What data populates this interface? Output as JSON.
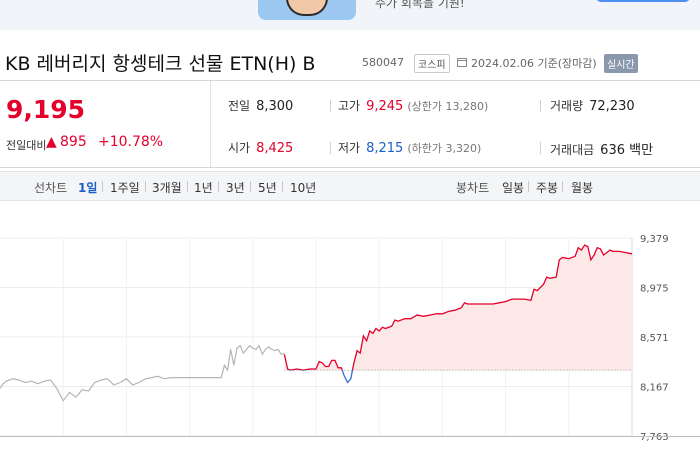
{
  "banner": {
    "text": "주가 회복을 기원!"
  },
  "stock": {
    "name": "KB 레버리지 항셍테크 선물 ETN(H) B",
    "code": "580047",
    "market": "코스피",
    "date": "2024.02.06 기준(장마감)",
    "realtime": "실시간"
  },
  "price": {
    "current": "9,195",
    "change_label": "전일대비",
    "change_arrow": "▲",
    "change_amount": "895",
    "change_pct": "+10.78%"
  },
  "stats": {
    "prev_label": "전일",
    "prev": "8,300",
    "high_label": "고가",
    "high": "9,245",
    "high_sub": "(상한가 13,280)",
    "volume_label": "거래량",
    "volume": "72,230",
    "open_label": "시가",
    "open": "8,425",
    "low_label": "저가",
    "low": "8,215",
    "low_sub": "(하한가 3,320)",
    "value_label": "거래대금",
    "value": "636 백만"
  },
  "tabs": {
    "line_label": "선차트",
    "line": [
      "1일",
      "1주일",
      "3개월",
      "1년",
      "3년",
      "5년",
      "10년"
    ],
    "candle_label": "봉차트",
    "candle": [
      "일봉",
      "주봉",
      "월봉"
    ]
  },
  "chart_data": {
    "type": "line",
    "y_ticks": [
      9379,
      8975,
      8571,
      8167,
      7763
    ],
    "y_tick_labels": [
      "9,379",
      "8,975",
      "8,571",
      "8,167",
      "7,763"
    ],
    "ylim": [
      7763,
      9379
    ],
    "xlim": [
      0,
      100
    ],
    "baseline": 8300,
    "grid": true,
    "colors": {
      "prev": "#b5b5b5",
      "up": "#e4002b",
      "down": "#2f6fd0",
      "fill": "#fde8e8"
    },
    "series": [
      {
        "values": [
          [
            0,
            8150
          ],
          [
            0.5,
            8190
          ],
          [
            1,
            8210
          ],
          [
            2,
            8230
          ],
          [
            3,
            8220
          ],
          [
            4,
            8200
          ],
          [
            5,
            8210
          ],
          [
            6,
            8190
          ],
          [
            7,
            8210
          ],
          [
            8,
            8220
          ],
          [
            9,
            8150
          ],
          [
            10,
            8050
          ],
          [
            11,
            8120
          ],
          [
            12,
            8080
          ],
          [
            13,
            8140
          ],
          [
            14,
            8130
          ],
          [
            15,
            8200
          ],
          [
            16,
            8220
          ],
          [
            17,
            8230
          ],
          [
            18,
            8180
          ],
          [
            19,
            8200
          ],
          [
            20,
            8230
          ],
          [
            21,
            8180
          ],
          [
            22,
            8200
          ],
          [
            23,
            8230
          ],
          [
            24,
            8240
          ],
          [
            25,
            8250
          ],
          [
            26,
            8230
          ],
          [
            27,
            8240
          ],
          [
            28,
            8240
          ],
          [
            29,
            8240
          ],
          [
            30,
            8240
          ],
          [
            31,
            8240
          ],
          [
            32,
            8240
          ],
          [
            33,
            8240
          ],
          [
            34,
            8240
          ],
          [
            35,
            8240
          ],
          [
            35.5,
            8340
          ],
          [
            36,
            8300
          ],
          [
            36.5,
            8470
          ],
          [
            37,
            8340
          ],
          [
            37.5,
            8480
          ],
          [
            38,
            8500
          ],
          [
            38.5,
            8440
          ],
          [
            39,
            8470
          ],
          [
            39.5,
            8500
          ],
          [
            40,
            8480
          ],
          [
            40.5,
            8470
          ],
          [
            41,
            8500
          ],
          [
            41.5,
            8430
          ],
          [
            42,
            8470
          ],
          [
            42.5,
            8490
          ],
          [
            43,
            8470
          ],
          [
            43.5,
            8460
          ],
          [
            44,
            8470
          ],
          [
            44.5,
            8430
          ],
          [
            45,
            8435
          ]
        ]
      },
      {
        "values": [
          [
            45,
            8430
          ],
          [
            45.5,
            8310
          ],
          [
            46,
            8300
          ],
          [
            47,
            8310
          ],
          [
            48,
            8300
          ],
          [
            49,
            8310
          ],
          [
            50,
            8310
          ],
          [
            50.5,
            8370
          ],
          [
            51,
            8360
          ],
          [
            51.5,
            8330
          ],
          [
            52,
            8330
          ],
          [
            52.5,
            8380
          ],
          [
            53,
            8380
          ],
          [
            53.5,
            8320
          ],
          [
            54,
            8320
          ],
          [
            54.5,
            8250
          ],
          [
            55,
            8200
          ],
          [
            55.5,
            8230
          ],
          [
            56,
            8360
          ],
          [
            56.5,
            8460
          ],
          [
            57,
            8440
          ],
          [
            57.5,
            8580
          ],
          [
            58,
            8540
          ],
          [
            58.5,
            8620
          ],
          [
            59,
            8600
          ],
          [
            59.5,
            8640
          ],
          [
            60,
            8620
          ],
          [
            60.5,
            8650
          ],
          [
            61,
            8640
          ],
          [
            62,
            8660
          ],
          [
            62.5,
            8710
          ],
          [
            63,
            8700
          ],
          [
            64,
            8720
          ],
          [
            65,
            8720
          ],
          [
            66,
            8750
          ],
          [
            67,
            8740
          ],
          [
            68,
            8750
          ],
          [
            69,
            8760
          ],
          [
            70,
            8760
          ],
          [
            71,
            8780
          ],
          [
            72,
            8790
          ],
          [
            73,
            8810
          ],
          [
            73.5,
            8850
          ],
          [
            74,
            8840
          ],
          [
            75,
            8840
          ],
          [
            76,
            8840
          ],
          [
            77,
            8840
          ],
          [
            78,
            8840
          ],
          [
            79,
            8850
          ],
          [
            80,
            8860
          ],
          [
            81,
            8880
          ],
          [
            82,
            8880
          ],
          [
            83,
            8880
          ],
          [
            84,
            8870
          ],
          [
            84.5,
            8960
          ],
          [
            85,
            8950
          ],
          [
            86,
            9000
          ],
          [
            86.5,
            9060
          ],
          [
            87,
            9050
          ],
          [
            88,
            9060
          ],
          [
            88.5,
            9200
          ],
          [
            89,
            9220
          ],
          [
            90,
            9210
          ],
          [
            91,
            9230
          ],
          [
            91.5,
            9300
          ],
          [
            92,
            9280
          ],
          [
            92.5,
            9320
          ],
          [
            93,
            9310
          ],
          [
            93.5,
            9200
          ],
          [
            94,
            9240
          ],
          [
            94.5,
            9300
          ],
          [
            95,
            9290
          ],
          [
            95.5,
            9240
          ],
          [
            96,
            9260
          ],
          [
            96.5,
            9280
          ],
          [
            97,
            9270
          ],
          [
            98,
            9270
          ],
          [
            99,
            9260
          ],
          [
            100,
            9250
          ]
        ]
      }
    ]
  }
}
